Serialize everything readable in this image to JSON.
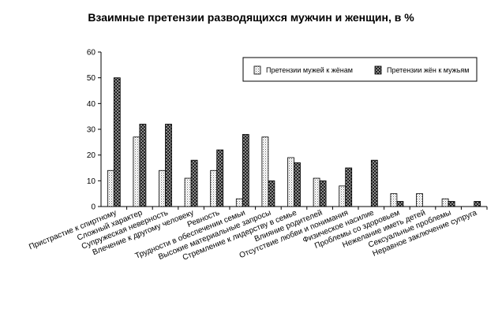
{
  "chart_data": {
    "type": "bar",
    "title": "Взаимные претензии разводящихся мужчин и женщин, в %",
    "xlabel": "",
    "ylabel": "",
    "ylim": [
      0,
      60
    ],
    "yticks": [
      0,
      10,
      20,
      30,
      40,
      50,
      60
    ],
    "grid": false,
    "legend_position": "top-right",
    "categories": [
      "Пристрастие к спиртному",
      "Сложный характер",
      "Супружеская неверность",
      "Влечение к другому человеку",
      "Ревность",
      "Трудности в обеспечении семьи",
      "Высокие материальные запросы",
      "Стремление к лидерству в семье",
      "Влияние родителей",
      "Отсутствие любви и понимания",
      "Физическое насилие",
      "Проблемы со здоровьем",
      "Нежелание иметь детей",
      "Сексуальные проблемы",
      "Неравное заключение супруга"
    ],
    "series": [
      {
        "name": "Претензии мужей к жёнам",
        "color": "#ffffff",
        "values": [
          14,
          27,
          14,
          11,
          14,
          3,
          27,
          19,
          11,
          8,
          0,
          5,
          5,
          3,
          0
        ]
      },
      {
        "name": "Претензии жён к мужьям",
        "color": "#222222",
        "values": [
          50,
          32,
          32,
          18,
          22,
          28,
          10,
          17,
          10,
          15,
          18,
          2,
          0,
          2,
          2
        ]
      }
    ]
  }
}
